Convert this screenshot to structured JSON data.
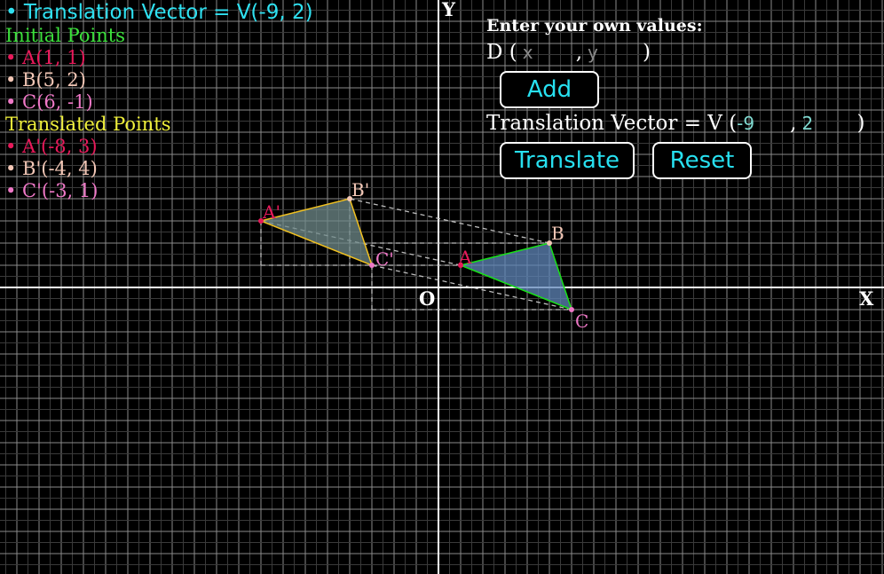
{
  "legend": {
    "title": "• Translation Vector = V(-9, 2)",
    "initial_heading": "Initial Points",
    "initial_points": [
      "• A(1, 1)",
      "• B(5, 2)",
      "• C(6, -1)"
    ],
    "translated_heading": "Translated Points",
    "translated_points": [
      "• A'(-8, 3)",
      "• B'(-4, 4)",
      "• C'(-3, 1)"
    ]
  },
  "panel": {
    "heading": "Enter your own values:",
    "point_prefix": "D (",
    "point_comma": ",",
    "point_suffix": ")",
    "x_placeholder": "x",
    "y_placeholder": "y",
    "add_label": "Add",
    "vector_prefix": "Translation Vector = V (",
    "vector_comma": ",",
    "vector_suffix": ")",
    "vector_x": "-9",
    "vector_y": "2",
    "translate_label": "Translate",
    "reset_label": "Reset"
  },
  "graph": {
    "axis_x_label": "X",
    "axis_y_label": "Y",
    "origin_label": "O",
    "translation": [
      -9,
      2
    ],
    "initial": [
      {
        "label": "A",
        "x": 1,
        "y": 1
      },
      {
        "label": "B",
        "x": 5,
        "y": 2
      },
      {
        "label": "C",
        "x": 6,
        "y": -1
      }
    ],
    "translated": [
      {
        "label": "A'",
        "x": -8,
        "y": 3
      },
      {
        "label": "B'",
        "x": -4,
        "y": 4
      },
      {
        "label": "C'",
        "x": -3,
        "y": 1
      }
    ]
  },
  "colors": {
    "background": "#000000",
    "grid_minor": "#3a3a3a",
    "grid_major": "#8a8a8a",
    "axis": "#ffffff",
    "legend_title": "#2fe0f0",
    "initial_heading": "#3ce03c",
    "translated_heading": "#f0f03c",
    "point_a": "#e8195a",
    "point_b": "#f3c7b6",
    "point_c": "#ee78c6",
    "initial_stroke": "#18e018",
    "initial_fill": "#5f86b8",
    "translated_stroke": "#f0c020",
    "translated_fill": "#6f8a8a",
    "button_text": "#27e0f0",
    "input_text": "#7fd8cf"
  }
}
